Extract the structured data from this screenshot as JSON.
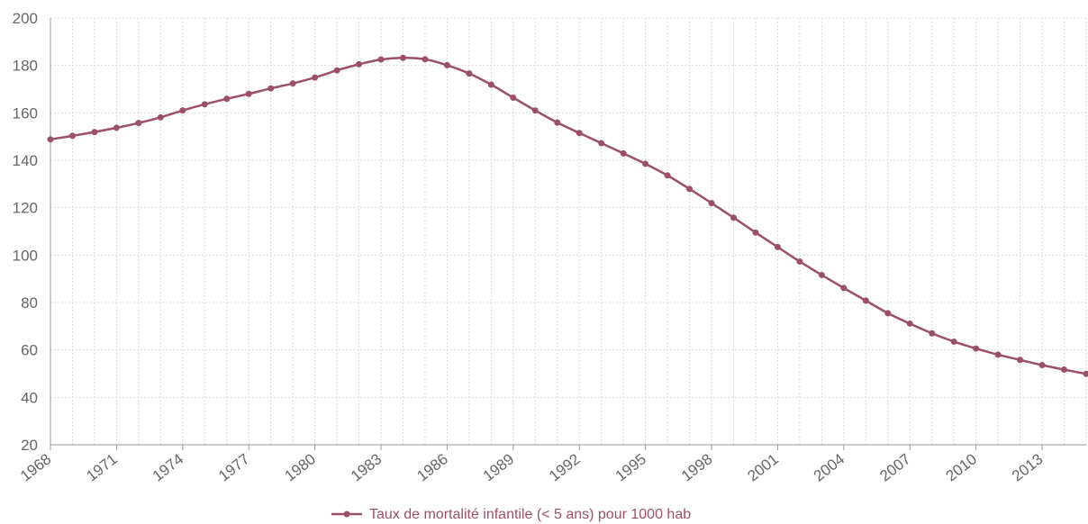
{
  "chart_data": {
    "type": "line",
    "x": [
      1968,
      1969,
      1970,
      1971,
      1972,
      1973,
      1974,
      1975,
      1976,
      1977,
      1978,
      1979,
      1980,
      1981,
      1982,
      1983,
      1984,
      1985,
      1986,
      1987,
      1988,
      1989,
      1990,
      1991,
      1992,
      1993,
      1994,
      1995,
      1996,
      1997,
      1998,
      1999,
      2000,
      2001,
      2002,
      2003,
      2004,
      2005,
      2006,
      2007,
      2008,
      2009,
      2010,
      2011,
      2012,
      2013,
      2014,
      2015
    ],
    "x_tick_labels": [
      "1968",
      "1971",
      "1974",
      "1977",
      "1980",
      "1983",
      "1986",
      "1989",
      "1992",
      "1995",
      "1998",
      "2001",
      "2004",
      "2007",
      "2010",
      "2013"
    ],
    "y_tick_labels": [
      "20",
      "40",
      "60",
      "80",
      "100",
      "120",
      "140",
      "160",
      "180",
      "200"
    ],
    "ylim": [
      20,
      200
    ],
    "grid": true,
    "legend_position": "bottom-center",
    "series": [
      {
        "name": "Taux de mortalité infantile (< 5 ans) pour 1000 hab",
        "color": "#9b5068",
        "values": [
          148.8,
          150.3,
          151.9,
          153.7,
          155.7,
          158.1,
          161.0,
          163.6,
          165.9,
          168.0,
          170.3,
          172.4,
          174.9,
          177.9,
          180.5,
          182.5,
          183.2,
          182.6,
          180.1,
          176.6,
          171.9,
          166.4,
          161.0,
          155.9,
          151.5,
          147.2,
          142.9,
          138.5,
          133.6,
          127.9,
          121.9,
          115.8,
          109.5,
          103.4,
          97.3,
          91.6,
          86.1,
          80.8,
          75.5,
          71.1,
          67.0,
          63.5,
          60.6,
          58.0,
          55.8,
          53.6,
          51.7,
          49.9
        ]
      }
    ]
  }
}
